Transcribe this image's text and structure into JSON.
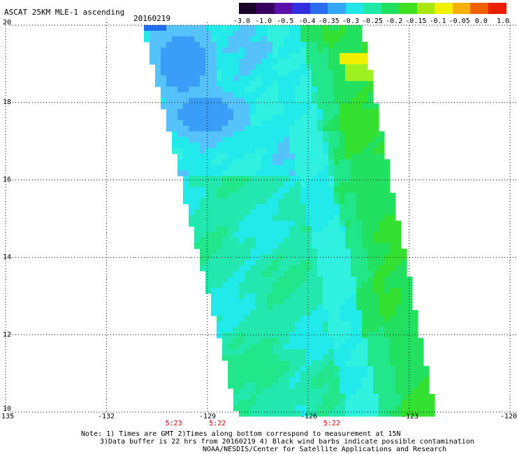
{
  "header": {
    "title": "ASCAT 25KM MLE-1 ascending",
    "date": "20160219"
  },
  "colorbar": {
    "labels": [
      "-3.0",
      "-1.0",
      "-0.5",
      "-0.4",
      "-0.35",
      "-0.3",
      "-0.25",
      "-0.2",
      "-0.15",
      "-0.1",
      "-0.05",
      "0.0",
      "1.0"
    ],
    "colors": [
      "#1a0028",
      "#3a0060",
      "#5a10a8",
      "#3030e0",
      "#2a6cf0",
      "#35a8f5",
      "#22e6e6",
      "#22e8a8",
      "#20e060",
      "#40e020",
      "#a8e810",
      "#f0f000",
      "#f8b000",
      "#f06000",
      "#e82000"
    ]
  },
  "map": {
    "lon_range": [
      -135,
      -120
    ],
    "lat_range": [
      10,
      20
    ],
    "x_ticks": [
      "-135",
      "-132",
      "-129",
      "-126",
      "-123",
      "-120"
    ],
    "y_ticks": [
      "20",
      "18",
      "16",
      "14",
      "12",
      "10"
    ],
    "pass_times": [
      {
        "label": "5:23",
        "lon": -130.0
      },
      {
        "label": "5:22",
        "lon": -128.7
      },
      {
        "label": "5:22",
        "lon": -125.3
      }
    ]
  },
  "notes": {
    "line1": "Note: 1) Times are GMT 2)Times along bottom correspond to measurement at 15N",
    "line2": "3)Data buffer is 22 hrs from 20160219 4) Black wind barbs indicate possible contamination",
    "line3": "NOAA/NESDIS/Center for Satellite Applications and Research"
  }
}
